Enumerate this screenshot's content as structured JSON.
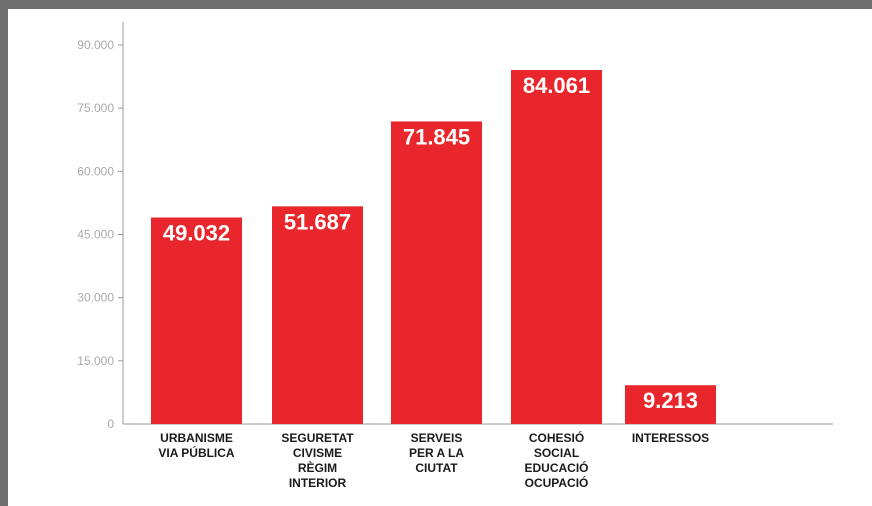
{
  "colors": {
    "bar": "#e8262b",
    "axis": "#9a9a9a",
    "tick_text": "#a9a9a9",
    "frame": "#6e6e6e"
  },
  "chart_data": {
    "type": "bar",
    "title": "",
    "xlabel": "",
    "ylabel": "",
    "ylim": [
      0,
      90000
    ],
    "y_ticks": [
      {
        "value": 0,
        "label": "0"
      },
      {
        "value": 15000,
        "label": "15.000"
      },
      {
        "value": 30000,
        "label": "30.000"
      },
      {
        "value": 45000,
        "label": "45.000"
      },
      {
        "value": 60000,
        "label": "60.000"
      },
      {
        "value": 75000,
        "label": "75.000"
      },
      {
        "value": 90000,
        "label": "90.000"
      }
    ],
    "categories": [
      [
        "URBANISME",
        "VIA PÚBLICA"
      ],
      [
        "SEGURETAT",
        "CIVISME",
        "RÈGIM",
        "INTERIOR"
      ],
      [
        "SERVEIS",
        "PER A LA",
        "CIUTAT"
      ],
      [
        "COHESIÓ",
        "SOCIAL",
        "EDUCACIÓ",
        "OCUPACIÓ"
      ],
      [
        "INTERESSOS"
      ]
    ],
    "values": [
      49032,
      51687,
      71845,
      84061,
      9213
    ],
    "value_labels": [
      "49.032",
      "51.687",
      "71.845",
      "84.061",
      "9.213"
    ],
    "grid": false,
    "legend": "none"
  }
}
